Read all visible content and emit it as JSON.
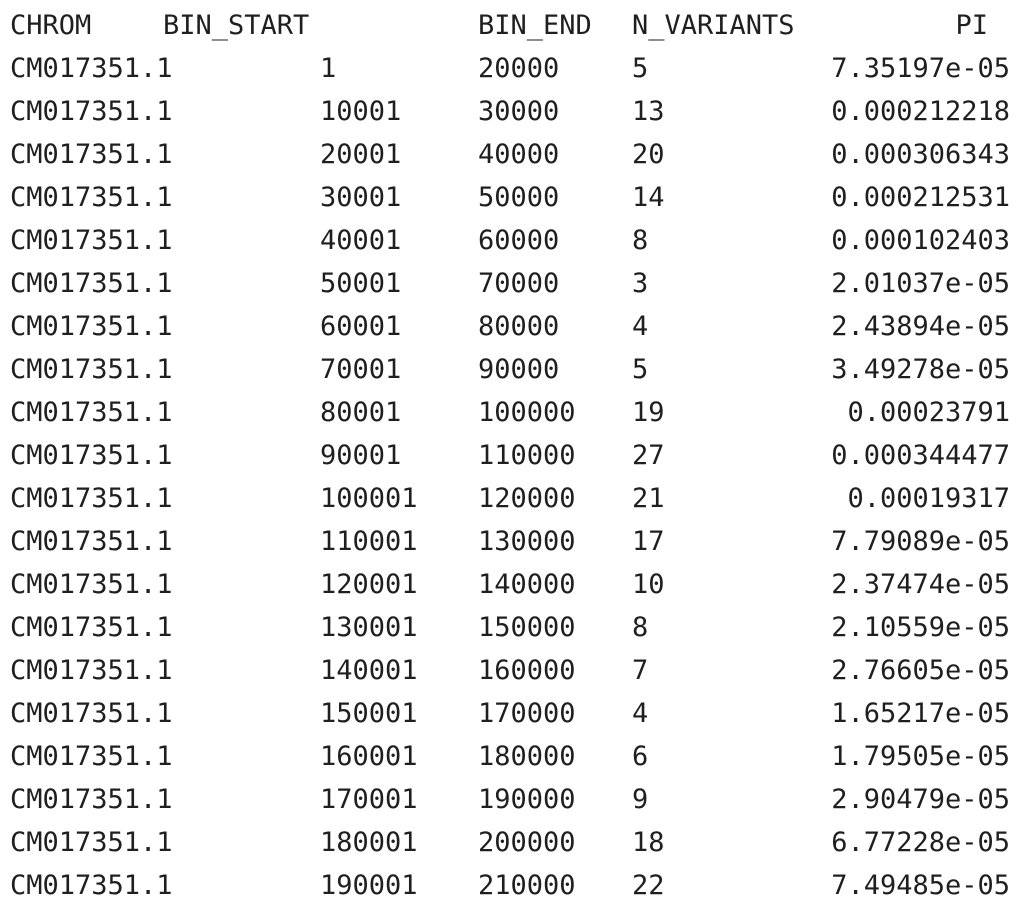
{
  "table": {
    "headers": {
      "chrom": "CHROM",
      "bin_start": "BIN_START",
      "bin_end": "BIN_END",
      "n_variants": "N_VARIANTS",
      "pi": "PI"
    },
    "rows": [
      {
        "chrom": "CM017351.1",
        "bin_start": "1",
        "bin_end": "20000",
        "n_variants": "5",
        "pi": "7.35197e-05"
      },
      {
        "chrom": "CM017351.1",
        "bin_start": "10001",
        "bin_end": "30000",
        "n_variants": "13",
        "pi": "0.000212218"
      },
      {
        "chrom": "CM017351.1",
        "bin_start": "20001",
        "bin_end": "40000",
        "n_variants": "20",
        "pi": "0.000306343"
      },
      {
        "chrom": "CM017351.1",
        "bin_start": "30001",
        "bin_end": "50000",
        "n_variants": "14",
        "pi": "0.000212531"
      },
      {
        "chrom": "CM017351.1",
        "bin_start": "40001",
        "bin_end": "60000",
        "n_variants": "8",
        "pi": "0.000102403"
      },
      {
        "chrom": "CM017351.1",
        "bin_start": "50001",
        "bin_end": "70000",
        "n_variants": "3",
        "pi": "2.01037e-05"
      },
      {
        "chrom": "CM017351.1",
        "bin_start": "60001",
        "bin_end": "80000",
        "n_variants": "4",
        "pi": "2.43894e-05"
      },
      {
        "chrom": "CM017351.1",
        "bin_start": "70001",
        "bin_end": "90000",
        "n_variants": "5",
        "pi": "3.49278e-05"
      },
      {
        "chrom": "CM017351.1",
        "bin_start": "80001",
        "bin_end": "100000",
        "n_variants": "19",
        "pi": "0.00023791"
      },
      {
        "chrom": "CM017351.1",
        "bin_start": "90001",
        "bin_end": "110000",
        "n_variants": "27",
        "pi": "0.000344477"
      },
      {
        "chrom": "CM017351.1",
        "bin_start": "100001",
        "bin_end": "120000",
        "n_variants": "21",
        "pi": "0.00019317"
      },
      {
        "chrom": "CM017351.1",
        "bin_start": "110001",
        "bin_end": "130000",
        "n_variants": "17",
        "pi": "7.79089e-05"
      },
      {
        "chrom": "CM017351.1",
        "bin_start": "120001",
        "bin_end": "140000",
        "n_variants": "10",
        "pi": "2.37474e-05"
      },
      {
        "chrom": "CM017351.1",
        "bin_start": "130001",
        "bin_end": "150000",
        "n_variants": "8",
        "pi": "2.10559e-05"
      },
      {
        "chrom": "CM017351.1",
        "bin_start": "140001",
        "bin_end": "160000",
        "n_variants": "7",
        "pi": "2.76605e-05"
      },
      {
        "chrom": "CM017351.1",
        "bin_start": "150001",
        "bin_end": "170000",
        "n_variants": "4",
        "pi": "1.65217e-05"
      },
      {
        "chrom": "CM017351.1",
        "bin_start": "160001",
        "bin_end": "180000",
        "n_variants": "6",
        "pi": "1.79505e-05"
      },
      {
        "chrom": "CM017351.1",
        "bin_start": "170001",
        "bin_end": "190000",
        "n_variants": "9",
        "pi": "2.90479e-05"
      },
      {
        "chrom": "CM017351.1",
        "bin_start": "180001",
        "bin_end": "200000",
        "n_variants": "18",
        "pi": "6.77228e-05"
      },
      {
        "chrom": "CM017351.1",
        "bin_start": "190001",
        "bin_end": "210000",
        "n_variants": "22",
        "pi": "7.49485e-05"
      }
    ]
  },
  "colors": {
    "text": "#1f1f1f",
    "background": "#ffffff"
  }
}
